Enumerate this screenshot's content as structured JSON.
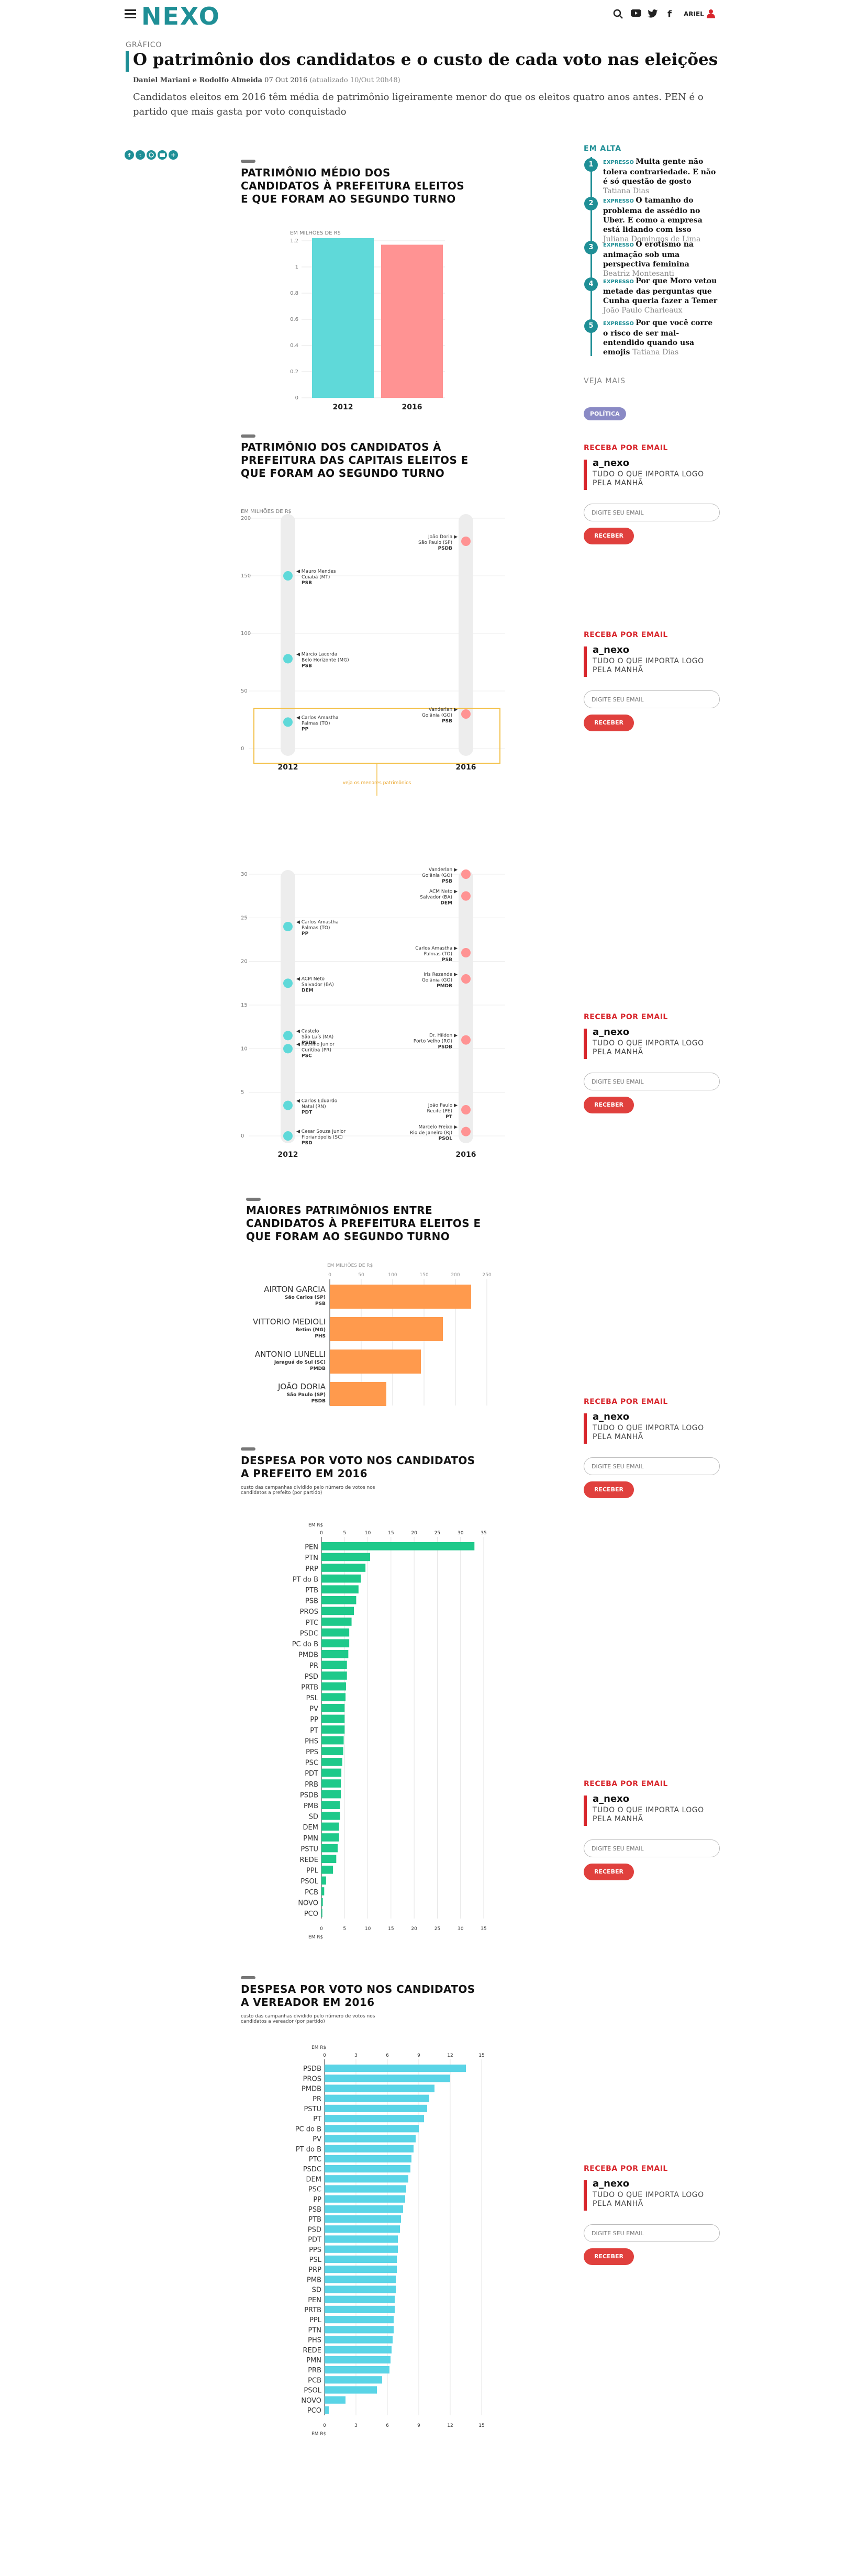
{
  "header": {
    "logo": "NEXO",
    "user_label": "ARIEL"
  },
  "article": {
    "kicker": "GRÁFICO",
    "title": "O patrimônio dos candidatos e o custo de cada voto nas eleições",
    "authors": "Daniel Mariani e Rodolfo Almeida",
    "date": "07 Out 2016",
    "updated": "(atualizado 10/Out 20h48)",
    "lead": "Candidatos eleitos em 2016 têm média de patrimônio ligeiramente menor do que os eleitos quatro anos antes. PEN é o partido que mais gasta por voto conquistado"
  },
  "sidebar": {
    "trending_title": "EM ALTA",
    "trending": [
      {
        "num": "1",
        "kind": "EXPRESSO",
        "headline": "Muita gente não tolera contrariedade. E não é só questão de gosto",
        "author": "Tatiana Dias"
      },
      {
        "num": "2",
        "kind": "EXPRESSO",
        "headline": "O tamanho do problema de assédio no Uber. E como a empresa está lidando com isso",
        "author": "Juliana Domingos de Lima"
      },
      {
        "num": "3",
        "kind": "EXPRESSO",
        "headline": "O erotismo na animação sob uma perspectiva feminina",
        "author": "Beatriz Montesanti"
      },
      {
        "num": "4",
        "kind": "EXPRESSO",
        "headline": "Por que Moro vetou metade das perguntas que Cunha queria fazer a Temer",
        "author": "João Paulo Charleaux"
      },
      {
        "num": "5",
        "kind": "EXPRESSO",
        "headline": "Por que você corre o risco de ser mal-entendido quando usa emojis",
        "author": "Tatiana Dias"
      }
    ],
    "see_more": "VEJA MAIS",
    "tag": "POLÍTICA",
    "newsletter": {
      "title": "RECEBA POR EMAIL",
      "brand": "a_nexo",
      "desc": "TUDO O QUE IMPORTA LOGO PELA MANHÃ",
      "placeholder": "DIGITE SEU EMAIL",
      "button": "RECEBER"
    }
  },
  "charts": {
    "c1": {
      "title": "PATRIMÔNIO MÉDIO DOS CANDIDATOS À PREFEITURA ELEITOS E QUE FORAM AO SEGUNDO TURNO",
      "unit": "EM MILHÕES DE R$"
    },
    "c2": {
      "title": "PATRIMÔNIO DOS CANDIDATOS À PREFEITURA DAS CAPITAIS ELEITOS E QUE FORAM AO SEGUNDO TURNO",
      "unit": "EM MILHÕES DE R$",
      "zoom_note": "veja os menores patrimônios"
    },
    "c4": {
      "title": "MAIORES PATRIMÔNIOS ENTRE CANDIDATOS À PREFEITURA ELEITOS E QUE FORAM AO SEGUNDO TURNO",
      "unit": "EM MILHÕES DE R$"
    },
    "c5": {
      "title": "DESPESA POR VOTO NOS CANDIDATOS A PREFEITO EM 2016",
      "subtitle": "custo das campanhas dividido pelo número de votos nos candidatos a prefeito (por partido)",
      "unit": "EM R$"
    },
    "c6": {
      "title": "DESPESA POR VOTO NOS CANDIDATOS A VEREADOR EM 2016",
      "subtitle": "custo das campanhas dividido pelo número de votos nos candidatos a vereador (por partido)",
      "unit": "EM R$"
    }
  },
  "chart_data": [
    {
      "type": "bar",
      "categories": [
        "2012",
        "2016"
      ],
      "values": [
        1.22,
        1.17
      ],
      "ylim": [
        0,
        1.2
      ],
      "yticks": [
        "0",
        "0.2",
        "0.4",
        "0.6",
        "0.8",
        "1",
        "1.2"
      ],
      "colors": [
        "#5fd9d9",
        "#ff9393"
      ]
    },
    {
      "type": "scatter",
      "x": [
        "2012",
        "2016"
      ],
      "ylim": [
        0,
        200
      ],
      "yticks": [
        "0",
        "50",
        "100",
        "150",
        "200"
      ],
      "points": [
        {
          "year": "2012",
          "value": 150,
          "name": "Mauro Mendes",
          "place": "Cuiabá (MT)",
          "party": "PSB"
        },
        {
          "year": "2012",
          "value": 78,
          "name": "Márcio Lacerda",
          "place": "Belo Horizonte (MG)",
          "party": "PSB"
        },
        {
          "year": "2012",
          "value": 23,
          "name": "Carlos Amastha",
          "place": "Palmas (TO)",
          "party": "PP"
        },
        {
          "year": "2016",
          "value": 180,
          "name": "João Doria",
          "place": "São Paulo (SP)",
          "party": "PSDB"
        },
        {
          "year": "2016",
          "value": 30,
          "name": "Vanderlan",
          "place": "Goiânia (GO)",
          "party": "PSB"
        }
      ]
    },
    {
      "type": "scatter",
      "x": [
        "2012",
        "2016"
      ],
      "ylim": [
        0,
        30
      ],
      "yticks": [
        "0",
        "5",
        "10",
        "15",
        "20",
        "25",
        "30"
      ],
      "points": [
        {
          "year": "2012",
          "value": 24,
          "name": "Carlos Amastha",
          "place": "Palmas (TO)",
          "party": "PP"
        },
        {
          "year": "2012",
          "value": 17.5,
          "name": "ACM Neto",
          "place": "Salvador (BA)",
          "party": "DEM"
        },
        {
          "year": "2012",
          "value": 11.5,
          "name": "Castelo",
          "place": "São Luís (MA)",
          "party": "PSDB"
        },
        {
          "year": "2012",
          "value": 10,
          "name": "Ratinho Junior",
          "place": "Curitiba (PR)",
          "party": "PSC"
        },
        {
          "year": "2012",
          "value": 3.5,
          "name": "Carlos Eduardo",
          "place": "Natal (RN)",
          "party": "PDT"
        },
        {
          "year": "2012",
          "value": 0,
          "name": "Cesar Souza Junior",
          "place": "Florianópolis (SC)",
          "party": "PSD"
        },
        {
          "year": "2016",
          "value": 30,
          "name": "Vanderlan",
          "place": "Goiânia (GO)",
          "party": "PSB"
        },
        {
          "year": "2016",
          "value": 27.5,
          "name": "ACM Neto",
          "place": "Salvador (BA)",
          "party": "DEM"
        },
        {
          "year": "2016",
          "value": 21,
          "name": "Carlos Amastha",
          "place": "Palmas (TO)",
          "party": "PSB"
        },
        {
          "year": "2016",
          "value": 18,
          "name": "Iris Rezende",
          "place": "Goiânia (GO)",
          "party": "PMDB"
        },
        {
          "year": "2016",
          "value": 11,
          "name": "Dr. Hildon",
          "place": "Porto Velho (RO)",
          "party": "PSDB"
        },
        {
          "year": "2016",
          "value": 3,
          "name": "João Paulo",
          "place": "Recife (PE)",
          "party": "PT"
        },
        {
          "year": "2016",
          "value": 0.5,
          "name": "Marcelo Freixo",
          "place": "Rio de Janeiro (RJ)",
          "party": "PSOL"
        }
      ]
    },
    {
      "type": "bar",
      "orientation": "horizontal",
      "xlim": [
        0,
        250
      ],
      "xticks": [
        "0",
        "50",
        "100",
        "150",
        "200",
        "250"
      ],
      "items": [
        {
          "name": "AIRTON GARCIA",
          "place": "São Carlos (SP)",
          "party": "PSB",
          "value": 225
        },
        {
          "name": "VITTORIO MEDIOLI",
          "place": "Betim (MG)",
          "party": "PHS",
          "value": 180
        },
        {
          "name": "ANTONIO LUNELLI",
          "place": "Jaraguá do Sul (SC)",
          "party": "PMDB",
          "value": 145
        },
        {
          "name": "JOÃO DORIA",
          "place": "São Paulo (SP)",
          "party": "PSDB",
          "value": 90
        }
      ]
    },
    {
      "type": "bar",
      "orientation": "horizontal",
      "xlim": [
        0,
        35
      ],
      "xticks": [
        "0",
        "5",
        "10",
        "15",
        "20",
        "25",
        "30",
        "35"
      ],
      "categories": [
        "PEN",
        "PTN",
        "PRP",
        "PT do B",
        "PTB",
        "PSB",
        "PROS",
        "PTC",
        "PSDC",
        "PC do B",
        "PMDB",
        "PR",
        "PSD",
        "PRTB",
        "PSL",
        "PV",
        "PP",
        "PT",
        "PHS",
        "PPS",
        "PSC",
        "PDT",
        "PRB",
        "PSDB",
        "PMB",
        "SD",
        "DEM",
        "PMN",
        "PSTU",
        "REDE",
        "PPL",
        "PSOL",
        "PCB",
        "NOVO",
        "PCO"
      ],
      "values": [
        33,
        10.5,
        9.5,
        8.5,
        8,
        7.5,
        7,
        6.5,
        6,
        6,
        5.8,
        5.5,
        5.5,
        5.3,
        5.2,
        5,
        5,
        5,
        4.8,
        4.7,
        4.5,
        4.3,
        4.2,
        4.2,
        4,
        4,
        3.8,
        3.8,
        3.5,
        3.2,
        2.5,
        1,
        0.6,
        0.3,
        0.2
      ]
    },
    {
      "type": "bar",
      "orientation": "horizontal",
      "xlim": [
        0,
        15
      ],
      "xticks": [
        "0",
        "3",
        "6",
        "9",
        "12",
        "15"
      ],
      "categories": [
        "PSDB",
        "PROS",
        "PMDB",
        "PR",
        "PSTU",
        "PT",
        "PC do B",
        "PV",
        "PT do B",
        "PTC",
        "PSDC",
        "DEM",
        "PSC",
        "PP",
        "PSB",
        "PTB",
        "PSD",
        "PDT",
        "PPS",
        "PSL",
        "PRP",
        "PMB",
        "SD",
        "PEN",
        "PRTB",
        "PPL",
        "PTN",
        "PHS",
        "REDE",
        "PMN",
        "PRB",
        "PCB",
        "PSOL",
        "NOVO",
        "PCO"
      ],
      "values": [
        13.5,
        12,
        10.5,
        10,
        9.8,
        9.5,
        9,
        8.7,
        8.5,
        8.3,
        8.2,
        8,
        7.8,
        7.7,
        7.5,
        7.3,
        7.2,
        7,
        7,
        6.9,
        6.9,
        6.8,
        6.8,
        6.7,
        6.7,
        6.6,
        6.6,
        6.5,
        6.4,
        6.3,
        6.2,
        5.5,
        5,
        2,
        0.4
      ]
    }
  ]
}
